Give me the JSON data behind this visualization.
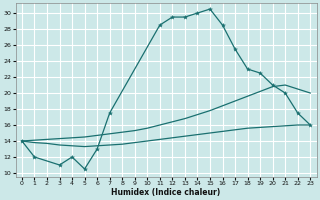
{
  "xlabel": "Humidex (Indice chaleur)",
  "ylabel": "",
  "bg_color": "#cce8e8",
  "grid_color": "#ffffff",
  "line_color": "#1a7070",
  "xlim": [
    -0.5,
    23.5
  ],
  "ylim": [
    9.5,
    31.2
  ],
  "xticks": [
    0,
    1,
    2,
    3,
    4,
    5,
    6,
    7,
    8,
    9,
    10,
    11,
    12,
    13,
    14,
    15,
    16,
    17,
    18,
    19,
    20,
    21,
    22,
    23
  ],
  "yticks": [
    10,
    12,
    14,
    16,
    18,
    20,
    22,
    24,
    26,
    28,
    30
  ],
  "curve1_x": [
    0,
    1,
    3,
    4,
    5,
    6,
    7,
    11,
    12,
    13,
    14,
    15,
    16,
    17,
    18,
    19,
    20,
    21,
    22,
    23
  ],
  "curve1_y": [
    14.0,
    12.0,
    11.0,
    12.0,
    10.5,
    13.0,
    17.5,
    28.5,
    29.5,
    29.5,
    30.0,
    30.5,
    28.5,
    25.5,
    23.0,
    22.5,
    21.0,
    20.0,
    17.5,
    16.0
  ],
  "curve2_x": [
    0,
    1,
    2,
    3,
    4,
    5,
    6,
    7,
    8,
    9,
    10,
    11,
    12,
    13,
    14,
    15,
    16,
    17,
    18,
    19,
    20,
    21,
    22,
    23
  ],
  "curve2_y": [
    14.0,
    14.1,
    14.2,
    14.3,
    14.4,
    14.5,
    14.7,
    14.9,
    15.1,
    15.3,
    15.6,
    16.0,
    16.4,
    16.8,
    17.3,
    17.8,
    18.4,
    19.0,
    19.6,
    20.2,
    20.8,
    21.0,
    20.5,
    20.0
  ],
  "curve3_x": [
    0,
    1,
    2,
    3,
    4,
    5,
    6,
    7,
    8,
    9,
    10,
    11,
    12,
    13,
    14,
    15,
    16,
    17,
    18,
    19,
    20,
    21,
    22,
    23
  ],
  "curve3_y": [
    14.0,
    13.8,
    13.7,
    13.5,
    13.4,
    13.3,
    13.4,
    13.5,
    13.6,
    13.8,
    14.0,
    14.2,
    14.4,
    14.6,
    14.8,
    15.0,
    15.2,
    15.4,
    15.6,
    15.7,
    15.8,
    15.9,
    16.0,
    16.0
  ]
}
